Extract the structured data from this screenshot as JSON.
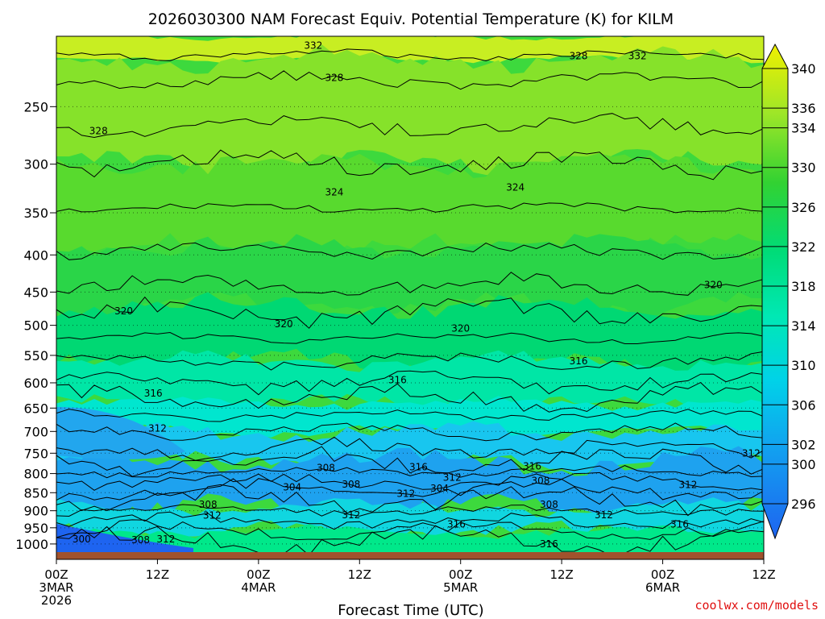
{
  "chart_data": {
    "type": "contour",
    "title": "2026030300 NAM Forecast Equiv. Potential Temperature (K) for KILM",
    "xlabel": "Forecast Time (UTC)",
    "ylabel": "",
    "credit": "coolwx.com/models",
    "y_axis": {
      "scale": "log-pressure",
      "range_hpa": [
        200,
        1050
      ],
      "reversed": true,
      "ticks": [
        250,
        300,
        350,
        400,
        450,
        500,
        550,
        600,
        650,
        700,
        750,
        800,
        850,
        900,
        950,
        1000
      ],
      "tick_labels": [
        "250",
        "300",
        "350",
        "400",
        "450",
        "500",
        "550",
        "600",
        "650",
        "700",
        "750",
        "800",
        "850",
        "900",
        "950",
        "1000"
      ],
      "dotted_gridlines": true
    },
    "x_axis": {
      "range_hours": [
        0,
        84
      ],
      "ticks": [
        {
          "hour": 0,
          "lines": [
            "00Z",
            "3MAR",
            "2026"
          ]
        },
        {
          "hour": 12,
          "lines": [
            "12Z"
          ]
        },
        {
          "hour": 24,
          "lines": [
            "00Z",
            "4MAR"
          ]
        },
        {
          "hour": 36,
          "lines": [
            "12Z"
          ]
        },
        {
          "hour": 48,
          "lines": [
            "00Z",
            "5MAR"
          ]
        },
        {
          "hour": 60,
          "lines": [
            "12Z"
          ]
        },
        {
          "hour": 72,
          "lines": [
            "00Z",
            "6MAR"
          ]
        },
        {
          "hour": 84,
          "lines": [
            "12Z"
          ]
        }
      ]
    },
    "colorbar": {
      "levels": [
        296,
        298,
        300,
        302,
        304,
        306,
        308,
        310,
        312,
        314,
        316,
        318,
        320,
        322,
        324,
        326,
        328,
        330,
        332,
        334,
        336,
        338,
        340
      ],
      "labels": [
        "340",
        "336",
        "334",
        "330",
        "326",
        "322",
        "318",
        "314",
        "310",
        "306",
        "302",
        "300",
        "296"
      ],
      "low_color": "#1e64f0",
      "mid_color": "#00dcc8",
      "high_color": "#f0f000",
      "ground_color": "#a0522d"
    },
    "contour_labels": [
      {
        "text": "332",
        "hour": 30.5,
        "hpa": 206
      },
      {
        "text": "328",
        "hour": 62.0,
        "hpa": 213
      },
      {
        "text": "332",
        "hour": 69.0,
        "hpa": 213
      },
      {
        "text": "328",
        "hour": 33.0,
        "hpa": 228
      },
      {
        "text": "328",
        "hour": 5.0,
        "hpa": 270
      },
      {
        "text": "324",
        "hour": 33.0,
        "hpa": 328
      },
      {
        "text": "324",
        "hour": 54.5,
        "hpa": 323
      },
      {
        "text": "320",
        "hour": 78.0,
        "hpa": 440
      },
      {
        "text": "320",
        "hour": 8.0,
        "hpa": 478
      },
      {
        "text": "320",
        "hour": 27.0,
        "hpa": 498
      },
      {
        "text": "320",
        "hour": 48.0,
        "hpa": 505
      },
      {
        "text": "316",
        "hour": 62.0,
        "hpa": 560
      },
      {
        "text": "316",
        "hour": 11.5,
        "hpa": 620
      },
      {
        "text": "316",
        "hour": 40.5,
        "hpa": 595
      },
      {
        "text": "312",
        "hour": 12.0,
        "hpa": 693
      },
      {
        "text": "312",
        "hour": 82.5,
        "hpa": 750
      },
      {
        "text": "316",
        "hour": 43.0,
        "hpa": 784
      },
      {
        "text": "316",
        "hour": 56.5,
        "hpa": 782
      },
      {
        "text": "308",
        "hour": 32.0,
        "hpa": 786
      },
      {
        "text": "312",
        "hour": 47.0,
        "hpa": 810
      },
      {
        "text": "308",
        "hour": 57.5,
        "hpa": 818
      },
      {
        "text": "304",
        "hour": 28.0,
        "hpa": 835
      },
      {
        "text": "308",
        "hour": 35.0,
        "hpa": 828
      },
      {
        "text": "312",
        "hour": 75.0,
        "hpa": 829
      },
      {
        "text": "304",
        "hour": 45.5,
        "hpa": 839
      },
      {
        "text": "312",
        "hour": 41.5,
        "hpa": 853
      },
      {
        "text": "308",
        "hour": 18.0,
        "hpa": 883
      },
      {
        "text": "308",
        "hour": 58.5,
        "hpa": 883
      },
      {
        "text": "312",
        "hour": 18.5,
        "hpa": 914
      },
      {
        "text": "312",
        "hour": 35.0,
        "hpa": 912
      },
      {
        "text": "312",
        "hour": 65.0,
        "hpa": 912
      },
      {
        "text": "316",
        "hour": 47.5,
        "hpa": 940
      },
      {
        "text": "316",
        "hour": 74.0,
        "hpa": 940
      },
      {
        "text": "300",
        "hour": 3.0,
        "hpa": 985
      },
      {
        "text": "308",
        "hour": 10.0,
        "hpa": 988
      },
      {
        "text": "312",
        "hour": 13.0,
        "hpa": 985
      },
      {
        "text": "316",
        "hour": 58.5,
        "hpa": 1000
      }
    ]
  }
}
